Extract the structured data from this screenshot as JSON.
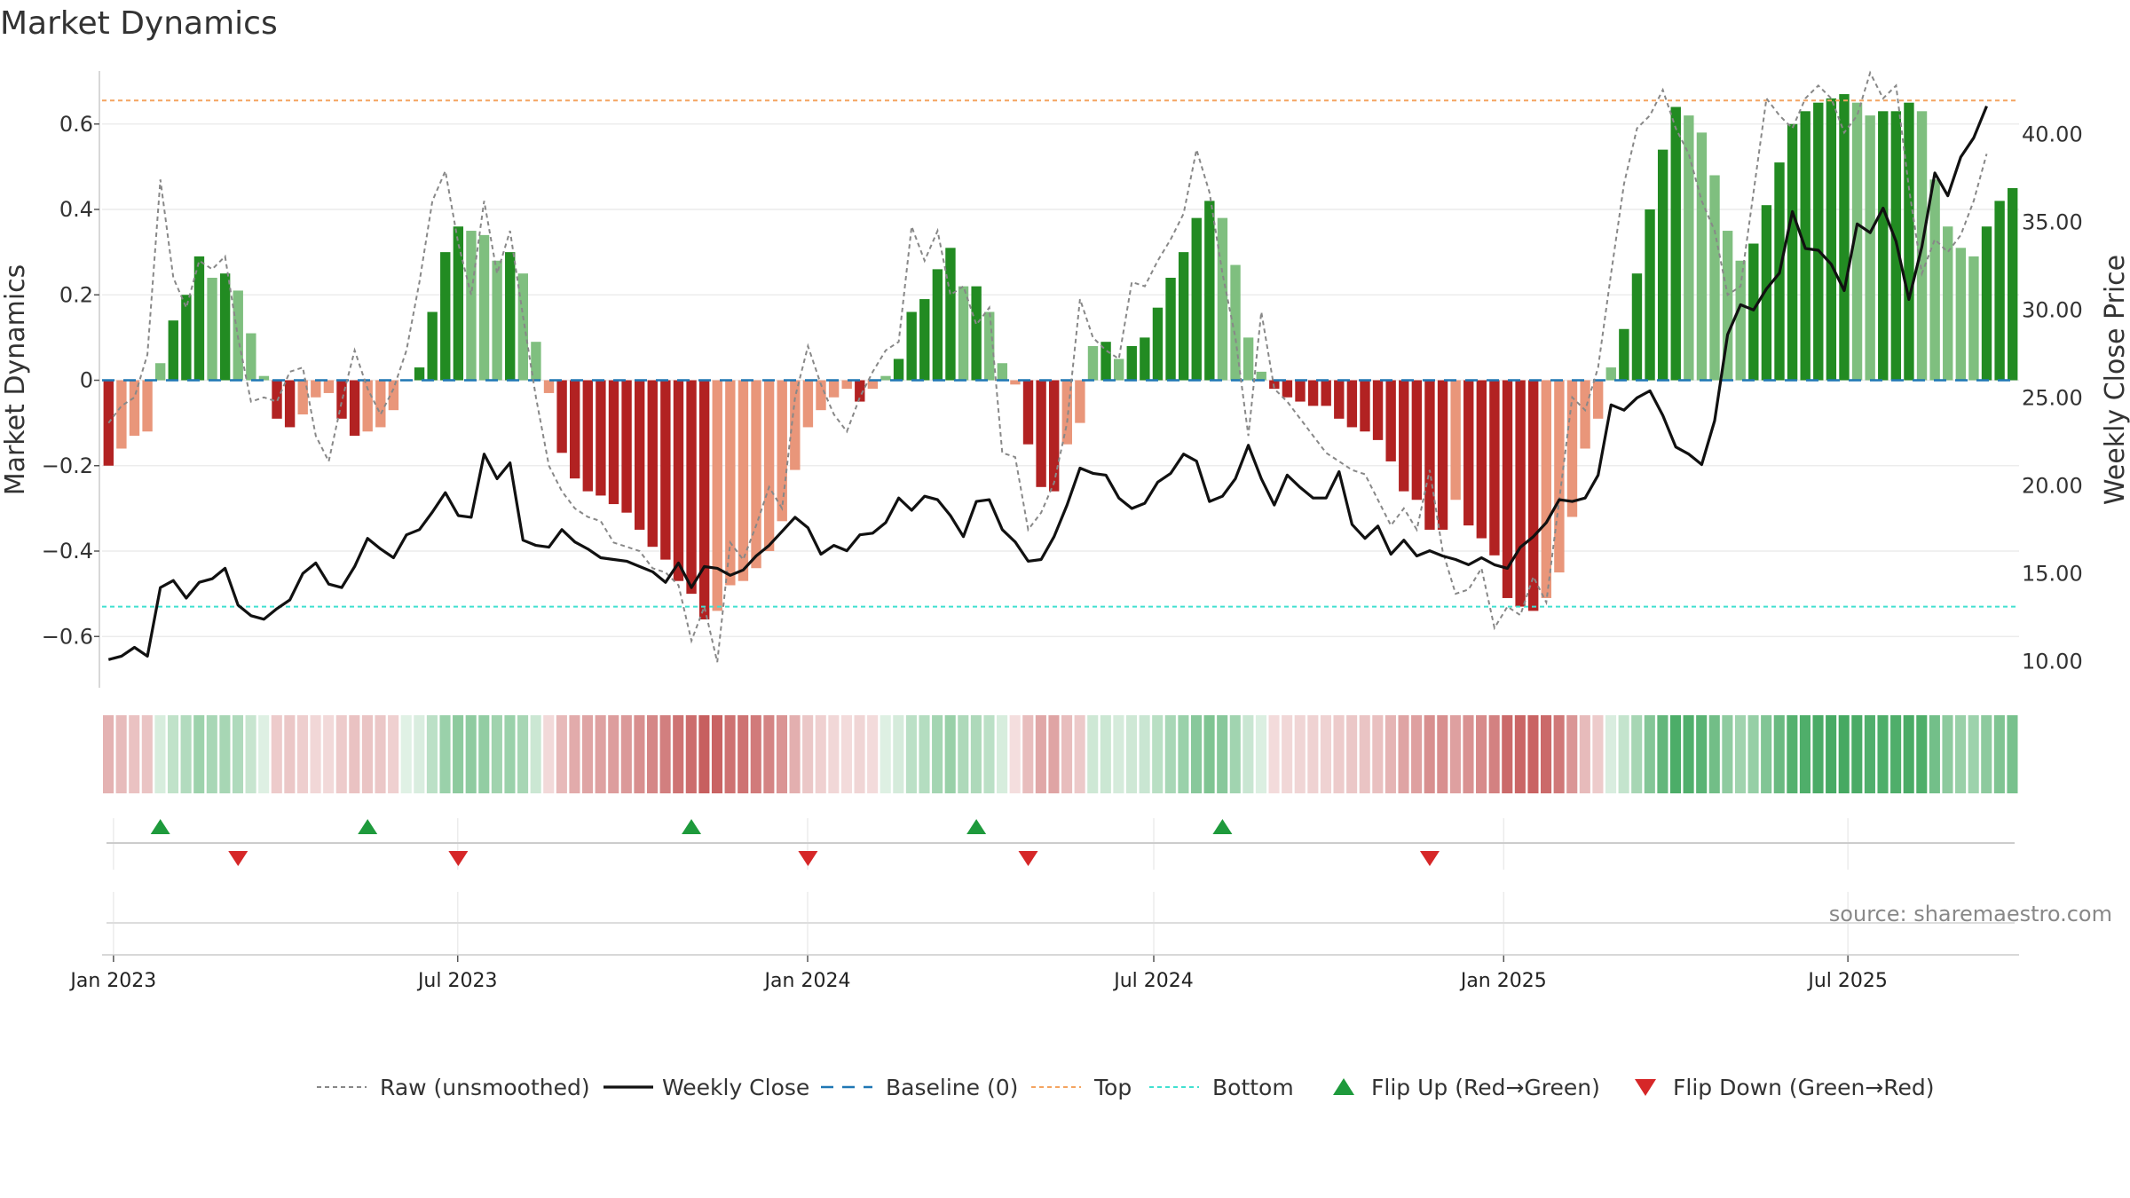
{
  "chart_data": {
    "type": "bar",
    "title": "Market Dynamics",
    "ylabel_left": "Market Dynamics",
    "ylabel_right": "Weekly Close Price",
    "source": "source: sharemaestro.com",
    "x_start": "2022-12-26",
    "x_end": "2025-09-29",
    "xticks": [
      {
        "date": "2023-01-01",
        "label": "Jan 2023"
      },
      {
        "date": "2023-07-01",
        "label": "Jul 2023"
      },
      {
        "date": "2024-01-01",
        "label": "Jan 2024"
      },
      {
        "date": "2024-07-01",
        "label": "Jul 2024"
      },
      {
        "date": "2025-01-01",
        "label": "Jan 2025"
      },
      {
        "date": "2025-07-01",
        "label": "Jul 2025"
      }
    ],
    "left_axis": {
      "ylim": [
        -0.72,
        0.72
      ],
      "ticks": [
        -0.6,
        -0.4,
        -0.2,
        0,
        0.2,
        0.4,
        0.6
      ],
      "tick_labels": [
        "−0.6",
        "−0.4",
        "−0.2",
        "0",
        "0.2",
        "0.4",
        "0.6"
      ]
    },
    "right_axis": {
      "ylim": [
        8.5,
        43.5
      ],
      "ticks": [
        10,
        15,
        20,
        25,
        30,
        35,
        40
      ],
      "tick_labels": [
        "10.00",
        "15.00",
        "20.00",
        "25.00",
        "30.00",
        "35.00",
        "40.00"
      ]
    },
    "top_line": 0.655,
    "bottom_line": -0.53,
    "baseline": 0,
    "dynamics": [
      -0.2,
      -0.16,
      -0.13,
      -0.12,
      0.04,
      0.14,
      0.2,
      0.29,
      0.24,
      0.25,
      0.21,
      0.11,
      0.01,
      -0.09,
      -0.11,
      -0.08,
      -0.04,
      -0.03,
      -0.09,
      -0.13,
      -0.12,
      -0.11,
      -0.07,
      0.0,
      0.03,
      0.16,
      0.3,
      0.36,
      0.35,
      0.34,
      0.28,
      0.3,
      0.25,
      0.09,
      -0.03,
      -0.17,
      -0.23,
      -0.26,
      -0.27,
      -0.29,
      -0.31,
      -0.35,
      -0.39,
      -0.42,
      -0.47,
      -0.5,
      -0.56,
      -0.54,
      -0.48,
      -0.47,
      -0.44,
      -0.4,
      -0.33,
      -0.21,
      -0.11,
      -0.07,
      -0.04,
      -0.02,
      -0.05,
      -0.02,
      0.01,
      0.05,
      0.16,
      0.19,
      0.26,
      0.31,
      0.22,
      0.22,
      0.16,
      0.04,
      -0.01,
      -0.15,
      -0.25,
      -0.26,
      -0.15,
      -0.1,
      0.08,
      0.09,
      0.05,
      0.08,
      0.1,
      0.17,
      0.24,
      0.3,
      0.38,
      0.42,
      0.38,
      0.27,
      0.1,
      0.02,
      -0.02,
      -0.04,
      -0.05,
      -0.06,
      -0.06,
      -0.09,
      -0.11,
      -0.12,
      -0.14,
      -0.19,
      -0.26,
      -0.28,
      -0.35,
      -0.35,
      -0.28,
      -0.34,
      -0.37,
      -0.41,
      -0.51,
      -0.53,
      -0.54,
      -0.51,
      -0.45,
      -0.32,
      -0.16,
      -0.09,
      0.03,
      0.12,
      0.25,
      0.4,
      0.54,
      0.64,
      0.62,
      0.58,
      0.48,
      0.35,
      0.28,
      0.32,
      0.41,
      0.51,
      0.6,
      0.63,
      0.65,
      0.66,
      0.67,
      0.65,
      0.62,
      0.63,
      0.63,
      0.65,
      0.63,
      0.47,
      0.36,
      0.31,
      0.29,
      0.36,
      0.42,
      0.45
    ],
    "raw": [
      -0.1,
      -0.06,
      -0.04,
      0.06,
      0.47,
      0.24,
      0.17,
      0.28,
      0.26,
      0.29,
      0.1,
      -0.05,
      -0.04,
      -0.05,
      0.02,
      0.03,
      -0.13,
      -0.19,
      -0.05,
      0.07,
      -0.02,
      -0.08,
      -0.02,
      0.07,
      0.23,
      0.42,
      0.49,
      0.32,
      0.2,
      0.42,
      0.25,
      0.35,
      0.15,
      -0.04,
      -0.2,
      -0.26,
      -0.3,
      -0.32,
      -0.33,
      -0.38,
      -0.39,
      -0.4,
      -0.44,
      -0.45,
      -0.48,
      -0.61,
      -0.53,
      -0.66,
      -0.38,
      -0.42,
      -0.34,
      -0.25,
      -0.3,
      -0.04,
      0.08,
      -0.01,
      -0.08,
      -0.12,
      -0.04,
      0.02,
      0.07,
      0.09,
      0.36,
      0.28,
      0.35,
      0.2,
      0.22,
      0.13,
      0.17,
      -0.17,
      -0.18,
      -0.35,
      -0.31,
      -0.24,
      -0.1,
      0.19,
      0.1,
      0.07,
      0.05,
      0.23,
      0.22,
      0.28,
      0.33,
      0.39,
      0.54,
      0.44,
      0.25,
      0.1,
      -0.13,
      0.16,
      -0.02,
      -0.05,
      -0.09,
      -0.13,
      -0.17,
      -0.19,
      -0.21,
      -0.22,
      -0.28,
      -0.34,
      -0.3,
      -0.35,
      -0.21,
      -0.4,
      -0.5,
      -0.49,
      -0.44,
      -0.58,
      -0.53,
      -0.55,
      -0.46,
      -0.52,
      -0.28,
      -0.04,
      -0.07,
      0.03,
      0.25,
      0.46,
      0.59,
      0.62,
      0.68,
      0.59,
      0.53,
      0.42,
      0.35,
      0.2,
      0.22,
      0.44,
      0.66,
      0.62,
      0.59,
      0.66,
      0.69,
      0.66,
      0.58,
      0.62,
      0.72,
      0.66,
      0.69,
      0.45,
      0.25,
      0.33,
      0.3,
      0.34,
      0.42,
      0.53
    ],
    "weekly_close": [
      10.1,
      10.3,
      10.8,
      10.3,
      14.2,
      14.6,
      13.6,
      14.5,
      14.7,
      15.3,
      13.2,
      12.6,
      12.4,
      13.0,
      13.5,
      15.0,
      15.6,
      14.4,
      14.2,
      15.4,
      17.0,
      16.4,
      15.9,
      17.2,
      17.5,
      18.5,
      19.6,
      18.3,
      18.2,
      21.8,
      20.4,
      21.3,
      16.9,
      16.6,
      16.5,
      17.5,
      16.8,
      16.4,
      15.9,
      15.8,
      15.7,
      15.4,
      15.1,
      14.5,
      15.6,
      14.2,
      15.4,
      15.3,
      14.9,
      15.2,
      16.0,
      16.6,
      17.4,
      18.2,
      17.6,
      16.1,
      16.6,
      16.3,
      17.2,
      17.3,
      17.9,
      19.3,
      18.6,
      19.4,
      19.2,
      18.3,
      17.1,
      19.1,
      19.2,
      17.5,
      16.8,
      15.7,
      15.8,
      17.1,
      18.9,
      21.0,
      20.7,
      20.6,
      19.3,
      18.7,
      19.0,
      20.2,
      20.7,
      21.8,
      21.4,
      19.1,
      19.4,
      20.4,
      22.3,
      20.4,
      18.9,
      20.6,
      19.9,
      19.3,
      19.3,
      20.8,
      17.8,
      17.0,
      17.7,
      16.1,
      16.9,
      16.0,
      16.3,
      16.0,
      15.8,
      15.5,
      15.9,
      15.5,
      15.3,
      16.5,
      17.1,
      17.9,
      19.2,
      19.1,
      19.3,
      20.6,
      24.6,
      24.3,
      25.0,
      25.4,
      24.0,
      22.2,
      21.8,
      21.2,
      23.7,
      28.6,
      30.3,
      30.0,
      31.2,
      32.1,
      35.6,
      33.5,
      33.4,
      32.6,
      31.1,
      34.9,
      34.4,
      35.8,
      33.9,
      30.6,
      33.6,
      37.8,
      36.5,
      38.7,
      39.8,
      41.6
    ],
    "flip_up_index": [
      4,
      20,
      45,
      67,
      86
    ],
    "flip_down_index": [
      10,
      27,
      54,
      71,
      102
    ],
    "legend": [
      {
        "key": "raw",
        "label": "Raw (unsmoothed)"
      },
      {
        "key": "close",
        "label": "Weekly Close"
      },
      {
        "key": "baseline",
        "label": "Baseline (0)"
      },
      {
        "key": "top",
        "label": "Top"
      },
      {
        "key": "bottom",
        "label": "Bottom"
      },
      {
        "key": "flipup",
        "label": "Flip Up (Red→Green)"
      },
      {
        "key": "flipdown",
        "label": "Flip Down (Green→Red)"
      }
    ],
    "colors": {
      "strong_green": "#228b22",
      "light_green": "#7fbf7f",
      "strong_red": "#b22222",
      "light_red": "#e9967a",
      "close": "#111111",
      "raw": "#888888",
      "baseline": "#1f77b4",
      "top": "#f4a460",
      "bottom": "#40e0d0",
      "flip_up": "#1e9a3c",
      "flip_down": "#d62728"
    }
  }
}
